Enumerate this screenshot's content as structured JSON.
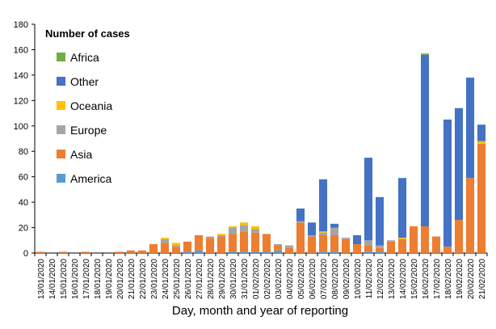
{
  "chart_data": {
    "type": "bar",
    "stacked": true,
    "ylabel": "Number of cases",
    "xlabel": "Day, month and year of reporting",
    "ylim": [
      0,
      180
    ],
    "yticks": [
      0,
      20,
      40,
      60,
      80,
      100,
      120,
      140,
      160,
      180
    ],
    "grid": false,
    "legend_position": "top-left inside plot",
    "categories": [
      "13/01/2020",
      "14/01/2020",
      "15/01/2020",
      "16/01/2020",
      "17/01/2020",
      "18/01/2020",
      "19/01/2020",
      "20/01/2020",
      "21/01/2020",
      "22/01/2020",
      "23/01/2020",
      "24/01/2020",
      "25/01/2020",
      "26/01/2020",
      "27/01/2020",
      "28/01/2020",
      "29/01/2020",
      "30/01/2020",
      "31/01/2020",
      "01/02/2020",
      "02/02/2020",
      "03/02/2020",
      "04/02/2020",
      "05/02/2020",
      "06/02/2020",
      "07/02/2020",
      "08/02/2020",
      "09/02/2020",
      "10/02/2020",
      "11/02/2020",
      "12/02/2020",
      "13/02/2020",
      "14/02/2020",
      "15/02/2020",
      "16/02/2020",
      "17/02/2020",
      "18/02/2020",
      "19/02/2020",
      "20/02/2020",
      "21/02/2020"
    ],
    "series": [
      {
        "name": "America",
        "color": "#5b9bd5",
        "values": [
          0,
          0,
          0,
          0,
          0,
          0,
          0,
          0,
          0,
          0,
          0,
          0,
          0,
          1,
          2,
          0,
          0,
          1,
          1,
          1,
          1,
          2,
          0,
          0,
          0,
          1,
          1,
          0,
          0,
          1,
          1,
          0,
          0,
          0,
          0,
          0,
          0,
          0,
          0,
          0
        ]
      },
      {
        "name": "Asia",
        "color": "#ed7d31",
        "values": [
          1,
          0,
          1,
          0,
          1,
          0,
          0,
          1,
          2,
          2,
          7,
          8,
          5,
          8,
          12,
          12,
          13,
          14,
          16,
          15,
          14,
          4,
          4,
          24,
          13,
          13,
          13,
          11,
          7,
          5,
          3,
          9,
          11,
          21,
          21,
          13,
          5,
          26,
          59,
          86
        ]
      },
      {
        "name": "Europe",
        "color": "#a5a5a5",
        "values": [
          0,
          0,
          0,
          0,
          0,
          0,
          0,
          0,
          0,
          0,
          0,
          3,
          1,
          0,
          0,
          1,
          1,
          5,
          5,
          3,
          0,
          1,
          2,
          1,
          1,
          2,
          6,
          1,
          0,
          4,
          2,
          1,
          0,
          0,
          0,
          0,
          0,
          0,
          0,
          0
        ]
      },
      {
        "name": "Oceania",
        "color": "#ffc000",
        "values": [
          0,
          0,
          0,
          0,
          0,
          0,
          0,
          0,
          0,
          0,
          0,
          1,
          2,
          0,
          0,
          0,
          1,
          1,
          2,
          2,
          0,
          0,
          0,
          0,
          0,
          1,
          0,
          0,
          0,
          0,
          0,
          0,
          1,
          0,
          0,
          0,
          0,
          0,
          0,
          2
        ]
      },
      {
        "name": "Other",
        "color": "#4472c4",
        "values": [
          0,
          0,
          0,
          0,
          0,
          0,
          0,
          0,
          0,
          0,
          0,
          0,
          0,
          0,
          0,
          0,
          0,
          0,
          0,
          0,
          0,
          0,
          0,
          10,
          10,
          41,
          3,
          0,
          7,
          65,
          38,
          0,
          47,
          0,
          135,
          0,
          100,
          88,
          79,
          13
        ]
      },
      {
        "name": "Africa",
        "color": "#70ad47",
        "values": [
          0,
          0,
          0,
          0,
          0,
          0,
          0,
          0,
          0,
          0,
          0,
          0,
          0,
          0,
          0,
          0,
          0,
          0,
          0,
          0,
          0,
          0,
          0,
          0,
          0,
          0,
          0,
          0,
          0,
          0,
          0,
          0,
          0,
          0,
          1,
          0,
          0,
          0,
          0,
          0
        ]
      }
    ]
  }
}
